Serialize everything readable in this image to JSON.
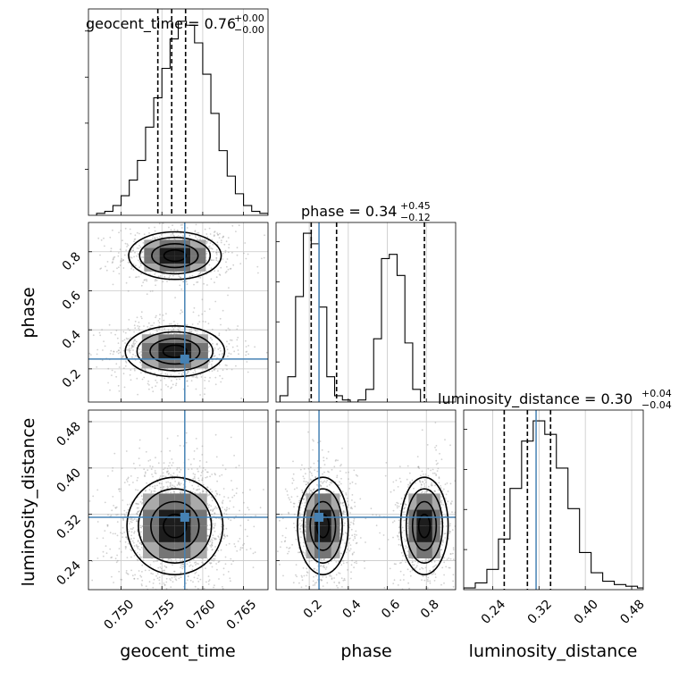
{
  "chart_data": {
    "type": "corner",
    "parameters": [
      "geocent_time",
      "phase",
      "luminosity_distance"
    ],
    "titles": [
      {
        "param": "geocent_time",
        "text": "geocent_time = 0.76",
        "sup": "+0.00",
        "sub": "−0.00"
      },
      {
        "param": "phase",
        "text": "phase = 0.34",
        "sup": "+0.45",
        "sub": "−0.12"
      },
      {
        "param": "luminosity_distance",
        "text": "luminosity_distance = 0.30",
        "sup": "+0.04",
        "sub": "−0.04"
      }
    ],
    "truth_color": "#4682b4",
    "ranges": {
      "geocent_time": [
        0.746,
        0.768
      ],
      "phase": [
        0.03,
        0.95
      ],
      "luminosity_distance": [
        0.19,
        0.5
      ]
    },
    "ticks": {
      "geocent_time": [
        "0.750",
        "0.755",
        "0.760",
        "0.765"
      ],
      "phase": [
        "0.2",
        "0.4",
        "0.6",
        "0.8"
      ],
      "luminosity_distance": [
        "0.24",
        "0.32",
        "0.40",
        "0.48"
      ]
    },
    "truths": {
      "geocent_time": 0.7578,
      "phase": 0.25,
      "luminosity_distance": 0.315
    },
    "quantiles": {
      "geocent_time": [
        0.7545,
        0.7562,
        0.7579
      ],
      "phase": [
        0.21,
        0.34,
        0.79
      ],
      "luminosity_distance": [
        0.26,
        0.3,
        0.34
      ]
    },
    "histograms": {
      "geocent_time": {
        "edges_start": 0.747,
        "bin_width": 0.001,
        "counts": [
          1,
          2,
          5,
          10,
          18,
          28,
          45,
          60,
          75,
          90,
          99,
          97,
          88,
          72,
          52,
          33,
          20,
          11,
          5,
          2,
          1
        ]
      },
      "phase": {
        "edges_start": 0.05,
        "bin_width": 0.04,
        "counts": [
          3,
          12,
          50,
          80,
          75,
          45,
          12,
          3,
          1,
          0,
          1,
          6,
          30,
          68,
          70,
          60,
          28,
          6
        ]
      },
      "luminosity_distance": {
        "edges_start": 0.19,
        "bin_width": 0.02,
        "counts": [
          1,
          4,
          12,
          30,
          60,
          88,
          100,
          92,
          72,
          48,
          22,
          10,
          5,
          3,
          2,
          1
        ]
      }
    },
    "clusters": {
      "geocent_time_phase": [
        {
          "x": 0.7566,
          "y": 0.78,
          "sx": 0.0027,
          "sy": 0.058,
          "n": 0.45
        },
        {
          "x": 0.7566,
          "y": 0.29,
          "sx": 0.0029,
          "sy": 0.062,
          "n": 0.55
        }
      ],
      "geocent_time_luminosity_distance": [
        {
          "x": 0.7566,
          "y": 0.3,
          "sx": 0.0028,
          "sy": 0.04,
          "n": 1.0
        }
      ],
      "phase_luminosity_distance": [
        {
          "x": 0.27,
          "y": 0.3,
          "sx": 0.062,
          "sy": 0.04,
          "n": 0.55
        },
        {
          "x": 0.79,
          "y": 0.3,
          "sx": 0.058,
          "sy": 0.04,
          "n": 0.45
        }
      ]
    }
  }
}
